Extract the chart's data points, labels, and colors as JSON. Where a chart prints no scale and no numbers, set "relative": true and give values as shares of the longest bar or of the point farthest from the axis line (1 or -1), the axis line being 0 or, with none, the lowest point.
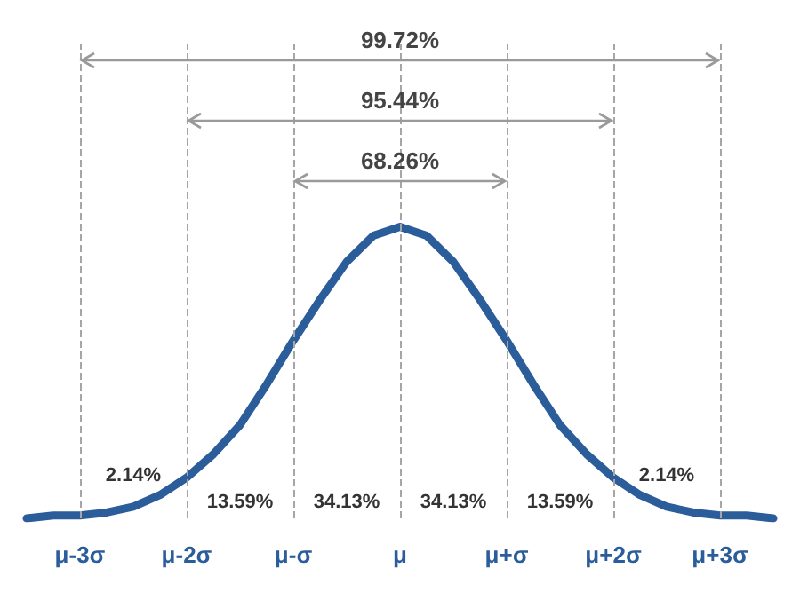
{
  "chart_data": {
    "type": "line",
    "relative": true,
    "color": "#2b5d9b",
    "marker": "none",
    "grid": false,
    "categories": [
      null,
      null,
      "μ-3σ",
      null,
      null,
      null,
      "μ-2σ",
      null,
      null,
      null,
      "μ-σ",
      null,
      null,
      null,
      "μ",
      null,
      null,
      null,
      "μ+σ",
      null,
      null,
      null,
      "μ+2σ",
      null,
      null,
      null,
      "μ+3σ",
      null,
      null
    ],
    "values": [
      0.0,
      0.01,
      0.01,
      0.02,
      0.04,
      0.08,
      0.14,
      0.22,
      0.32,
      0.46,
      0.61,
      0.75,
      0.88,
      0.97,
      1,
      0.97,
      0.88,
      0.75,
      0.61,
      0.46,
      0.32,
      0.22,
      0.14,
      0.08,
      0.04,
      0.02,
      0.01,
      0.01,
      0.0
    ],
    "ref_lines": [
      {
        "axis": "x",
        "value": "μ-3σ",
        "line_style": "dashed",
        "color": "#a6a6a6"
      },
      {
        "axis": "x",
        "value": "μ-2σ",
        "line_style": "dashed",
        "color": "#a6a6a6"
      },
      {
        "axis": "x",
        "value": "μ-σ",
        "line_style": "dashed",
        "color": "#a6a6a6"
      },
      {
        "axis": "x",
        "value": "μ",
        "line_style": "dashed",
        "color": "#a6a6a6"
      },
      {
        "axis": "x",
        "value": "μ+σ",
        "line_style": "dashed",
        "color": "#a6a6a6"
      },
      {
        "axis": "x",
        "value": "μ+2σ",
        "line_style": "dashed",
        "color": "#a6a6a6"
      },
      {
        "axis": "x",
        "value": "μ+3σ",
        "line_style": "dashed",
        "color": "#a6a6a6"
      }
    ],
    "annotations": [
      "99.72%",
      "95.44%",
      "68.26%",
      "2.14%",
      "13.59%",
      "34.13%",
      "34.13%",
      "13.59%",
      "2.14%"
    ]
  }
}
